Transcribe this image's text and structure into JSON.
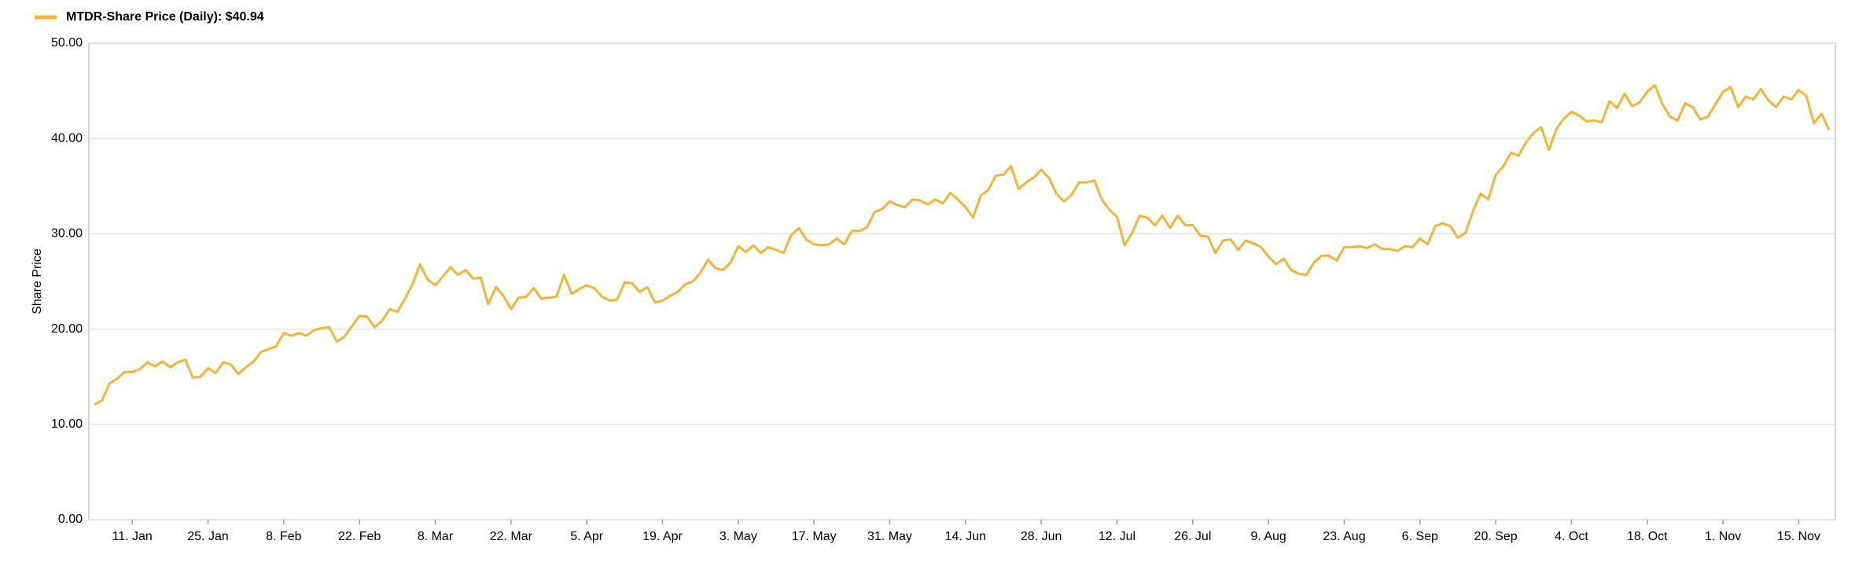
{
  "chart_data": {
    "type": "line",
    "y_label": "Share Price",
    "categories": [
      null,
      null,
      null,
      null,
      null,
      "11. Jan",
      null,
      null,
      null,
      null,
      null,
      null,
      null,
      null,
      null,
      "25. Jan",
      null,
      null,
      null,
      null,
      null,
      null,
      null,
      null,
      null,
      "8. Feb",
      null,
      null,
      null,
      null,
      null,
      null,
      null,
      null,
      null,
      "22. Feb",
      null,
      null,
      null,
      null,
      null,
      null,
      null,
      null,
      null,
      "8. Mar",
      null,
      null,
      null,
      null,
      null,
      null,
      null,
      null,
      null,
      "22. Mar",
      null,
      null,
      null,
      null,
      null,
      null,
      null,
      null,
      null,
      "5. Apr",
      null,
      null,
      null,
      null,
      null,
      null,
      null,
      null,
      null,
      "19. Apr",
      null,
      null,
      null,
      null,
      null,
      null,
      null,
      null,
      null,
      "3. May",
      null,
      null,
      null,
      null,
      null,
      null,
      null,
      null,
      null,
      "17. May",
      null,
      null,
      null,
      null,
      null,
      null,
      null,
      null,
      null,
      "31. May",
      null,
      null,
      null,
      null,
      null,
      null,
      null,
      null,
      null,
      "14. Jun",
      null,
      null,
      null,
      null,
      null,
      null,
      null,
      null,
      null,
      "28. Jun",
      null,
      null,
      null,
      null,
      null,
      null,
      null,
      null,
      null,
      "12. Jul",
      null,
      null,
      null,
      null,
      null,
      null,
      null,
      null,
      null,
      "26. Jul",
      null,
      null,
      null,
      null,
      null,
      null,
      null,
      null,
      null,
      "9. Aug",
      null,
      null,
      null,
      null,
      null,
      null,
      null,
      null,
      null,
      "23. Aug",
      null,
      null,
      null,
      null,
      null,
      null,
      null,
      null,
      null,
      "6. Sep",
      null,
      null,
      null,
      null,
      null,
      null,
      null,
      null,
      null,
      "20. Sep",
      null,
      null,
      null,
      null,
      null,
      null,
      null,
      null,
      null,
      "4. Oct",
      null,
      null,
      null,
      null,
      null,
      null,
      null,
      null,
      null,
      "18. Oct",
      null,
      null,
      null,
      null,
      null,
      null,
      null,
      null,
      null,
      "1. Nov",
      null,
      null,
      null,
      null,
      null,
      null,
      null,
      null,
      null,
      "15. Nov",
      null,
      null,
      null,
      null
    ],
    "series": [
      {
        "name": "MTDR-Share Price (Daily): $40.94",
        "color": "#f3b533",
        "values": [
          12.1,
          12.5,
          14.3,
          14.8,
          15.5,
          15.5,
          15.8,
          16.5,
          16.1,
          16.6,
          16.0,
          16.5,
          16.8,
          14.9,
          15.0,
          15.9,
          15.4,
          16.5,
          16.3,
          15.3,
          16.0,
          16.6,
          17.6,
          17.9,
          18.2,
          19.6,
          19.3,
          19.6,
          19.3,
          19.9,
          20.1,
          20.2,
          18.7,
          19.2,
          20.3,
          21.4,
          21.3,
          20.2,
          20.9,
          22.1,
          21.8,
          23.2,
          24.7,
          26.8,
          25.2,
          24.6,
          25.5,
          26.5,
          25.7,
          26.2,
          25.3,
          25.4,
          22.6,
          24.4,
          23.5,
          22.1,
          23.3,
          23.4,
          24.3,
          23.2,
          23.3,
          23.4,
          25.7,
          23.7,
          24.2,
          24.6,
          24.3,
          23.4,
          23.0,
          23.1,
          24.9,
          24.8,
          23.9,
          24.4,
          22.8,
          23.0,
          23.5,
          23.9,
          24.7,
          25.0,
          25.9,
          27.3,
          26.4,
          26.2,
          27.0,
          28.7,
          28.1,
          28.8,
          28.0,
          28.6,
          28.3,
          28.0,
          29.9,
          30.6,
          29.4,
          28.9,
          28.8,
          28.9,
          29.5,
          28.9,
          30.3,
          30.3,
          30.7,
          32.3,
          32.6,
          33.4,
          33.0,
          32.8,
          33.6,
          33.5,
          33.1,
          33.6,
          33.2,
          34.3,
          33.6,
          32.8,
          31.7,
          34.0,
          34.6,
          36.1,
          36.2,
          37.1,
          34.7,
          35.4,
          35.9,
          36.7,
          35.9,
          34.2,
          33.4,
          34.1,
          35.4,
          35.4,
          35.6,
          33.6,
          32.5,
          31.8,
          28.8,
          30.1,
          31.9,
          31.7,
          30.9,
          31.9,
          30.6,
          31.9,
          30.9,
          30.9,
          29.8,
          29.7,
          28.0,
          29.3,
          29.4,
          28.3,
          29.3,
          29.0,
          28.6,
          27.6,
          26.8,
          27.4,
          26.2,
          25.8,
          25.7,
          27.0,
          27.7,
          27.7,
          27.2,
          28.6,
          28.6,
          28.7,
          28.5,
          28.9,
          28.4,
          28.4,
          28.2,
          28.7,
          28.6,
          29.5,
          28.9,
          30.8,
          31.1,
          30.8,
          29.6,
          30.1,
          32.4,
          34.2,
          33.6,
          36.2,
          37.1,
          38.5,
          38.2,
          39.6,
          40.6,
          41.2,
          38.8,
          41.0,
          42.1,
          42.8,
          42.4,
          41.8,
          41.9,
          41.7,
          43.9,
          43.2,
          44.7,
          43.4,
          43.8,
          44.9,
          45.6,
          43.6,
          42.3,
          41.9,
          43.7,
          43.3,
          42.0,
          42.3,
          43.6,
          44.9,
          45.4,
          43.3,
          44.4,
          44.1,
          45.2,
          44.0,
          43.3,
          44.4,
          44.1,
          45.1,
          44.5,
          41.6,
          42.6,
          40.9
        ]
      }
    ],
    "ylim": [
      0,
      50
    ],
    "yticks": [
      {
        "value": 0,
        "label": "0.00"
      },
      {
        "value": 10,
        "label": "10.00"
      },
      {
        "value": 20,
        "label": "20.00"
      },
      {
        "value": 30,
        "label": "30.00"
      },
      {
        "value": 40,
        "label": "40.00"
      },
      {
        "value": 50,
        "label": "50.00"
      }
    ],
    "grid": true,
    "legend": "top-left"
  }
}
